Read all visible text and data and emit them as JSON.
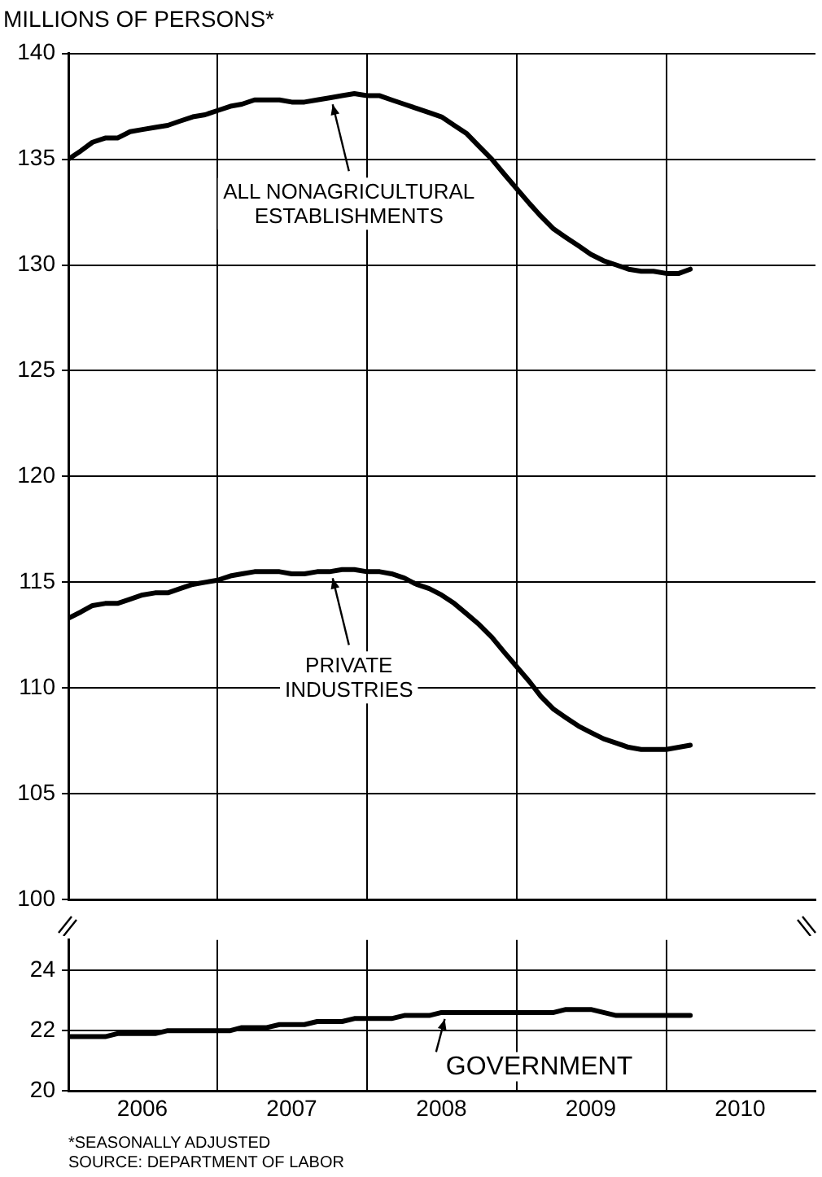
{
  "chart_data": [
    {
      "type": "line",
      "title": "MILLIONS OF PERSONS*",
      "x": [
        "2006-01",
        "2006-02",
        "2006-03",
        "2006-04",
        "2006-05",
        "2006-06",
        "2006-07",
        "2006-08",
        "2006-09",
        "2006-10",
        "2006-11",
        "2006-12",
        "2007-01",
        "2007-02",
        "2007-03",
        "2007-04",
        "2007-05",
        "2007-06",
        "2007-07",
        "2007-08",
        "2007-09",
        "2007-10",
        "2007-11",
        "2007-12",
        "2008-01",
        "2008-02",
        "2008-03",
        "2008-04",
        "2008-05",
        "2008-06",
        "2008-07",
        "2008-08",
        "2008-09",
        "2008-10",
        "2008-11",
        "2008-12",
        "2009-01",
        "2009-02",
        "2009-03",
        "2009-04",
        "2009-05",
        "2009-06",
        "2009-07",
        "2009-08",
        "2009-09",
        "2009-10",
        "2009-11",
        "2009-12",
        "2010-01",
        "2010-02",
        "2010-03"
      ],
      "series": [
        {
          "color": "#000000",
          "values": [
            135.0,
            135.4,
            135.8,
            136.0,
            136.0,
            136.3,
            136.4,
            136.5,
            136.6,
            136.8,
            137.0,
            137.1,
            137.3,
            137.5,
            137.6,
            137.8,
            137.8,
            137.8,
            137.7,
            137.7,
            137.8,
            137.9,
            138.0,
            138.1,
            138.0,
            138.0,
            137.8,
            137.6,
            137.4,
            137.2,
            137.0,
            136.6,
            136.2,
            135.6,
            135.0,
            134.3,
            133.6,
            132.9,
            132.3,
            131.7,
            131.3,
            130.9,
            130.5,
            130.2,
            130.0,
            129.8,
            129.7,
            129.7,
            129.6,
            129.6,
            129.8
          ]
        },
        {
          "color": "#000000",
          "values": [
            113.3,
            113.6,
            113.9,
            114.0,
            114.0,
            114.2,
            114.4,
            114.5,
            114.5,
            114.7,
            114.9,
            115.0,
            115.1,
            115.3,
            115.4,
            115.5,
            115.5,
            115.5,
            115.4,
            115.4,
            115.5,
            115.5,
            115.6,
            115.6,
            115.5,
            115.5,
            115.4,
            115.2,
            114.9,
            114.7,
            114.4,
            114.0,
            113.5,
            113.0,
            112.4,
            111.7,
            111.0,
            110.3,
            109.6,
            109.0,
            108.6,
            108.2,
            107.9,
            107.6,
            107.4,
            107.2,
            107.1,
            107.1,
            107.1,
            107.2,
            107.3
          ]
        }
      ],
      "xlim": [
        "2006-01-01",
        "2011-01-01"
      ],
      "xticks": [
        {
          "value": "2007-01-01",
          "label": null
        },
        {
          "value": "2008-01-01",
          "label": null
        },
        {
          "value": "2009-01-01",
          "label": null
        },
        {
          "value": "2010-01-01",
          "label": null
        }
      ],
      "ylim": [
        100,
        140
      ],
      "yticks": [
        100,
        105,
        110,
        115,
        120,
        125,
        130,
        135,
        140
      ],
      "tick_labels": "y",
      "grid": true,
      "legend": false,
      "marker": "none",
      "line_style": "solid",
      "annotations": [
        {
          "text": "ALL NONAGRICULTURAL\nESTABLISHMENTS",
          "x": "2007-10",
          "y": 137.9
        },
        {
          "text": "PRIVATE\nINDUSTRIES",
          "x": "2007-10",
          "y": 115.5
        }
      ]
    },
    {
      "type": "line",
      "x": [
        "2006-01",
        "2006-02",
        "2006-03",
        "2006-04",
        "2006-05",
        "2006-06",
        "2006-07",
        "2006-08",
        "2006-09",
        "2006-10",
        "2006-11",
        "2006-12",
        "2007-01",
        "2007-02",
        "2007-03",
        "2007-04",
        "2007-05",
        "2007-06",
        "2007-07",
        "2007-08",
        "2007-09",
        "2007-10",
        "2007-11",
        "2007-12",
        "2008-01",
        "2008-02",
        "2008-03",
        "2008-04",
        "2008-05",
        "2008-06",
        "2008-07",
        "2008-08",
        "2008-09",
        "2008-10",
        "2008-11",
        "2008-12",
        "2009-01",
        "2009-02",
        "2009-03",
        "2009-04",
        "2009-05",
        "2009-06",
        "2009-07",
        "2009-08",
        "2009-09",
        "2009-10",
        "2009-11",
        "2009-12",
        "2010-01",
        "2010-02",
        "2010-03"
      ],
      "series": [
        {
          "color": "#000000",
          "values": [
            21.8,
            21.8,
            21.8,
            21.8,
            21.9,
            21.9,
            21.9,
            21.9,
            22.0,
            22.0,
            22.0,
            22.0,
            22.0,
            22.0,
            22.1,
            22.1,
            22.1,
            22.2,
            22.2,
            22.2,
            22.3,
            22.3,
            22.3,
            22.4,
            22.4,
            22.4,
            22.4,
            22.5,
            22.5,
            22.5,
            22.6,
            22.6,
            22.6,
            22.6,
            22.6,
            22.6,
            22.6,
            22.6,
            22.6,
            22.6,
            22.7,
            22.7,
            22.7,
            22.6,
            22.5,
            22.5,
            22.5,
            22.5,
            22.5,
            22.5,
            22.5
          ]
        }
      ],
      "xlim": [
        "2006-01-01",
        "2011-01-01"
      ],
      "xticks": [
        {
          "value": "2006-07-01",
          "label": "2006"
        },
        {
          "value": "2007-01-01",
          "label": null
        },
        {
          "value": "2007-07-01",
          "label": "2007"
        },
        {
          "value": "2008-01-01",
          "label": null
        },
        {
          "value": "2008-07-01",
          "label": "2008"
        },
        {
          "value": "2009-01-01",
          "label": null
        },
        {
          "value": "2009-07-01",
          "label": "2009"
        },
        {
          "value": "2010-01-01",
          "label": null
        },
        {
          "value": "2010-07-01",
          "label": "2010"
        }
      ],
      "ylim": [
        20,
        25
      ],
      "yticks": [
        20,
        22,
        24
      ],
      "grid": true,
      "legend": false,
      "marker": "none",
      "line_style": "solid",
      "annotations": [
        {
          "text": "GOVERNMENT",
          "x": "2008-07",
          "y": 22.6
        },
        "*SEASONALLY ADJUSTED",
        "SOURCE: DEPARTMENT OF LABOR"
      ]
    }
  ]
}
